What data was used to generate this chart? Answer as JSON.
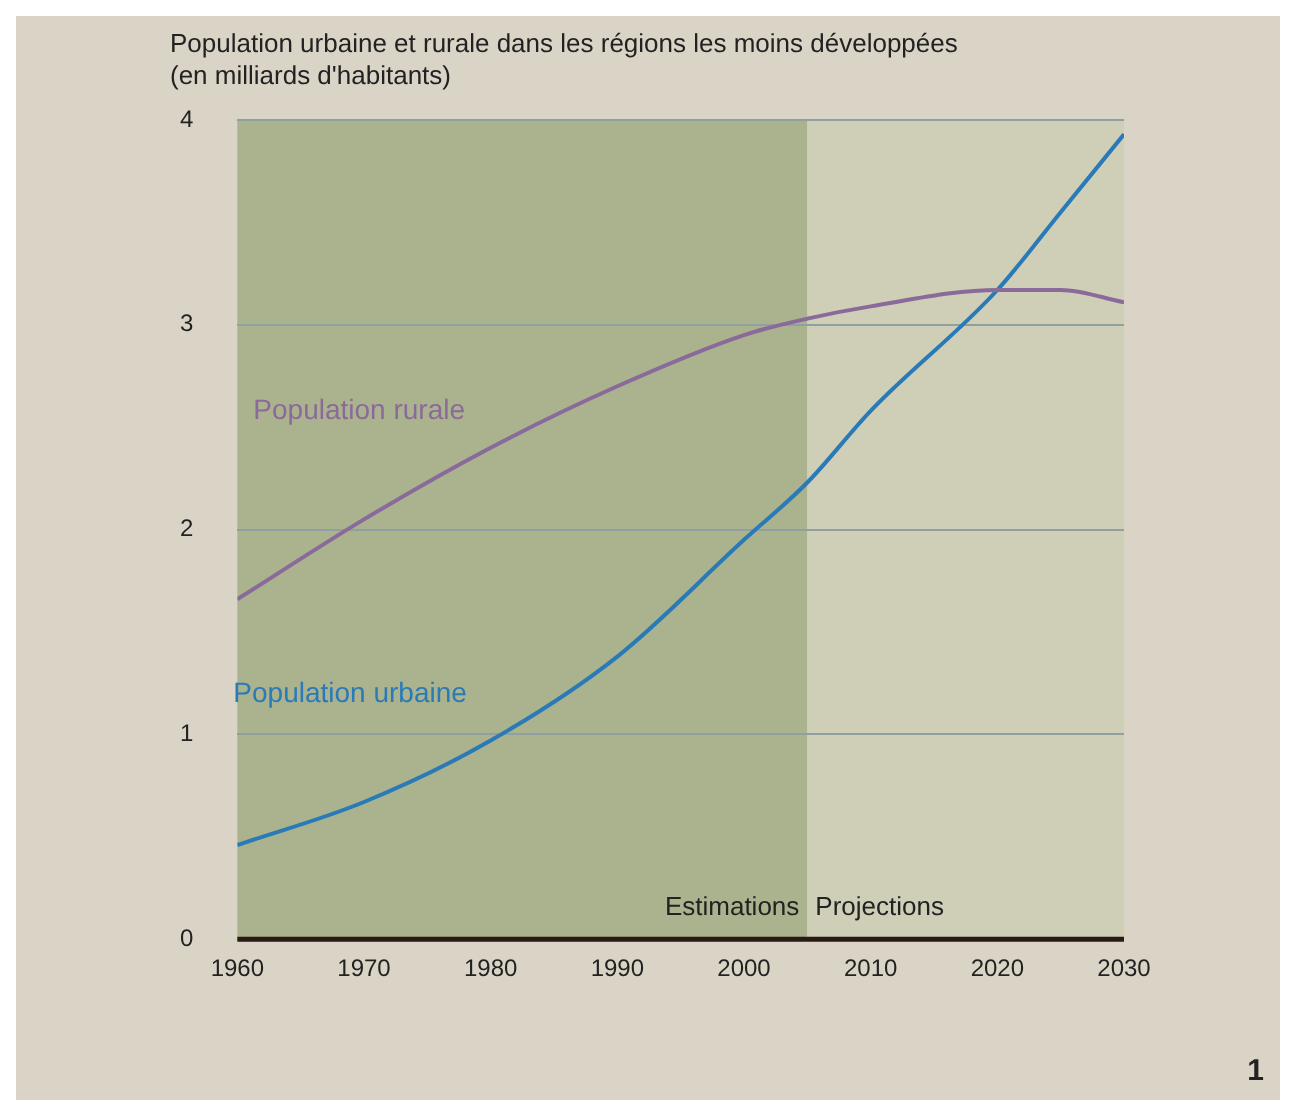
{
  "chart_data": {
    "type": "line",
    "title": "Population urbaine et rurale dans les régions les moins développées (en milliards d'habitants)",
    "x": [
      1960,
      1970,
      1980,
      1990,
      2000,
      2005,
      2010,
      2020,
      2025,
      2030
    ],
    "series": [
      {
        "name": "Population rurale",
        "color": "#8a6a9a",
        "values": [
          1.66,
          2.05,
          2.4,
          2.7,
          2.95,
          3.03,
          3.09,
          3.17,
          3.17,
          3.11
        ]
      },
      {
        "name": "Population urbaine",
        "color": "#2a7ab8",
        "values": [
          0.46,
          0.67,
          0.97,
          1.38,
          1.95,
          2.23,
          2.58,
          3.17,
          3.55,
          3.93
        ]
      }
    ],
    "xlim": [
      1960,
      2030
    ],
    "xticks": [
      1960,
      1970,
      1980,
      1990,
      2000,
      2010,
      2020,
      2030
    ],
    "ylim": [
      0,
      4
    ],
    "yticks": [
      0,
      1,
      2,
      3,
      4
    ],
    "grid": "y",
    "legend": false,
    "marker": "none",
    "line_style": "solid",
    "bands": [
      {
        "axis": "x",
        "from": 1960,
        "to": 2005,
        "label": "Estimations",
        "color": "#aab38e"
      },
      {
        "axis": "x",
        "from": 2005,
        "to": 2030,
        "label": "Projections",
        "color": "#cfcfb8"
      }
    ],
    "annotations": [
      "1"
    ]
  }
}
